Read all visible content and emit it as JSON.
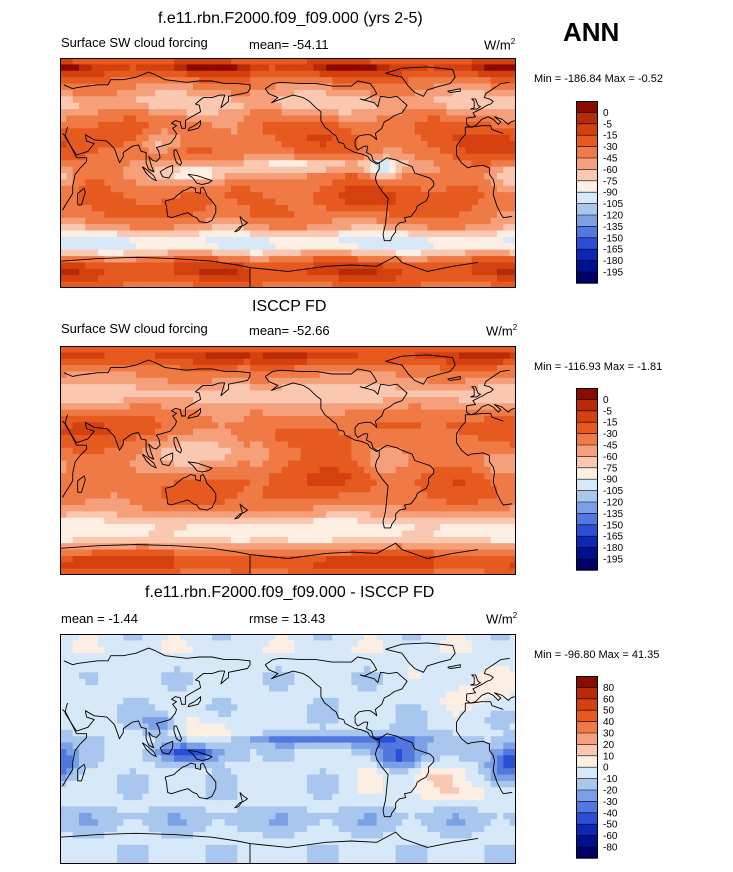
{
  "season": "ANN",
  "palette_main": [
    "#8b0b00",
    "#b72b08",
    "#d4410f",
    "#e65a20",
    "#ef7a45",
    "#f5a07b",
    "#fac8b0",
    "#fdeee4",
    "#d7e8f8",
    "#a9c6ef",
    "#7ba0e6",
    "#5278e0",
    "#2a4fd6",
    "#0c27b8",
    "#001190",
    "#000066"
  ],
  "palette_diff": [
    "#8b0b00",
    "#b72b08",
    "#d4410f",
    "#e65a20",
    "#ef7a45",
    "#f5a07b",
    "#fac8b0",
    "#fdeee4",
    "#d7e8f8",
    "#a9c6ef",
    "#7ba0e6",
    "#5278e0",
    "#2a4fd6",
    "#0c27b8",
    "#001190",
    "#000066"
  ],
  "panels": [
    {
      "title": "f.e11.rbn.F2000.f09_f09.000 (yrs 2-5)",
      "left_label": "Surface SW cloud forcing",
      "mid_label": "mean= -54.11",
      "units_base": "W/m",
      "units_exp": "2",
      "minmax": "Min = -186.84 Max =  -0.52",
      "kind": "model",
      "levels": [
        "0",
        "-5",
        "-15",
        "-30",
        "-45",
        "-60",
        "-75",
        "-90",
        "-105",
        "-120",
        "-135",
        "-150",
        "-165",
        "-180",
        "-195"
      ]
    },
    {
      "title": "ISCCP FD",
      "left_label": "Surface SW cloud forcing",
      "mid_label": "mean= -52.66",
      "units_base": "W/m",
      "units_exp": "2",
      "minmax": "Min = -116.93 Max =  -1.81",
      "kind": "obs",
      "levels": [
        "0",
        "-5",
        "-15",
        "-30",
        "-45",
        "-60",
        "-75",
        "-90",
        "-105",
        "-120",
        "-135",
        "-150",
        "-165",
        "-180",
        "-195"
      ]
    },
    {
      "title": "f.e11.rbn.F2000.f09_f09.000 - ISCCP FD",
      "left_label": "mean =  -1.44",
      "mid_label": "rmse =  13.43",
      "units_base": "W/m",
      "units_exp": "2",
      "minmax": "Min = -96.80 Max =  41.35",
      "kind": "diff",
      "levels": [
        "80",
        "60",
        "50",
        "40",
        "30",
        "20",
        "10",
        "0",
        "-10",
        "-20",
        "-30",
        "-40",
        "-50",
        "-60",
        "-80"
      ]
    }
  ],
  "chart_data": [
    {
      "type": "heatmap",
      "title": "f.e11.rbn.F2000.f09_f09.000 (yrs 2-5)",
      "variable": "Surface SW cloud forcing",
      "units": "W/m2",
      "mean": -54.11,
      "min": -186.84,
      "max": -0.52,
      "contour_levels": [
        0,
        -5,
        -15,
        -30,
        -45,
        -60,
        -75,
        -90,
        -105,
        -120,
        -135,
        -150,
        -165,
        -180,
        -195
      ]
    },
    {
      "type": "heatmap",
      "title": "ISCCP FD",
      "variable": "Surface SW cloud forcing",
      "units": "W/m2",
      "mean": -52.66,
      "min": -116.93,
      "max": -1.81,
      "contour_levels": [
        0,
        -5,
        -15,
        -30,
        -45,
        -60,
        -75,
        -90,
        -105,
        -120,
        -135,
        -150,
        -165,
        -180,
        -195
      ]
    },
    {
      "type": "heatmap",
      "title": "f.e11.rbn.F2000.f09_f09.000 - ISCCP FD",
      "units": "W/m2",
      "mean": -1.44,
      "rmse": 13.43,
      "min": -96.8,
      "max": 41.35,
      "contour_levels": [
        80,
        60,
        50,
        40,
        30,
        20,
        10,
        0,
        -10,
        -20,
        -30,
        -40,
        -50,
        -60,
        -80
      ]
    }
  ]
}
